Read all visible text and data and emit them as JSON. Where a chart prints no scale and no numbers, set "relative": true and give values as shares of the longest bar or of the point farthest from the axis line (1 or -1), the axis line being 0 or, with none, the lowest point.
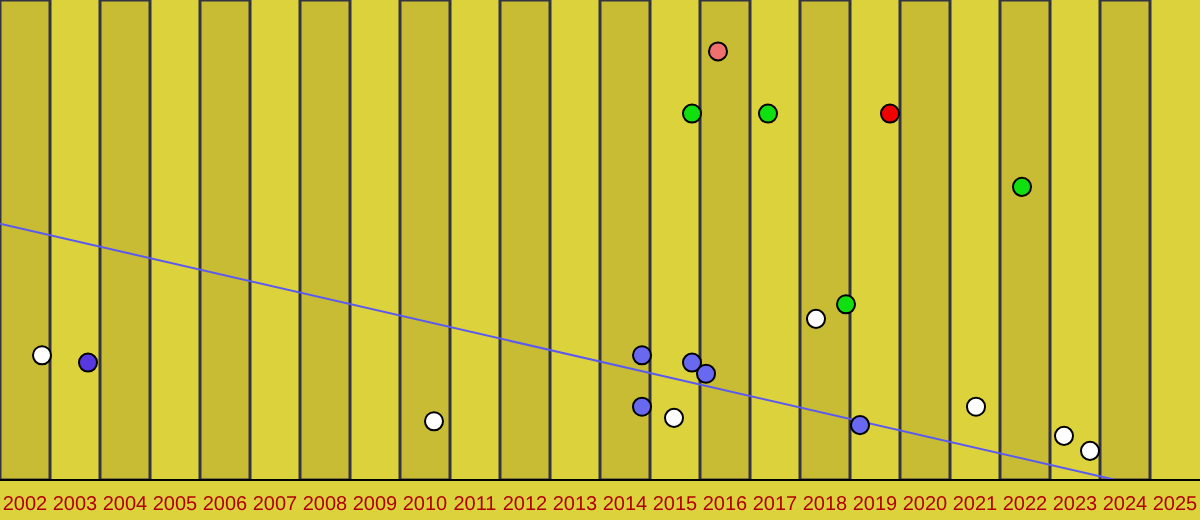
{
  "chart_data": {
    "type": "scatter",
    "relative": true,
    "marker": "circle",
    "tick_labels": "x",
    "xlim": [
      2001.5,
      2025.5
    ],
    "xticks": [
      2002,
      2003,
      2004,
      2005,
      2006,
      2007,
      2008,
      2009,
      2010,
      2011,
      2012,
      2013,
      2014,
      2015,
      2016,
      2017,
      2018,
      2019,
      2020,
      2021,
      2022,
      2023,
      2024,
      2025
    ],
    "series": [
      {
        "color": "#f07070",
        "x": [
          2015.86
        ],
        "values": [
          1
        ]
      },
      {
        "color": "#10e010",
        "x": [
          2015.34,
          2016.86,
          2021.94,
          2018.42
        ],
        "values": [
          0.855,
          0.855,
          0.684,
          0.41
        ]
      },
      {
        "color": "#f00000",
        "x": [
          2019.3
        ],
        "values": [
          0.855
        ]
      },
      {
        "color": "#ffffff",
        "x": [
          2002.34,
          2010.18,
          2014.98,
          2017.82,
          2021.02,
          2022.78,
          2023.3
        ],
        "values": [
          0.291,
          0.137,
          0.145,
          0.376,
          0.171,
          0.103,
          0.068
        ]
      },
      {
        "color": "#6868f0",
        "x": [
          2014.34,
          2015.34,
          2015.62,
          2014.34,
          2018.7
        ],
        "values": [
          0.291,
          0.274,
          0.248,
          0.171,
          0.128
        ]
      },
      {
        "color": "#5838e0",
        "x": [
          2003.26
        ],
        "values": [
          0.274
        ]
      },
      {
        "type": "line",
        "color": "#5a5af0",
        "marker": "none",
        "x": [
          2001.5,
          2023.82
        ],
        "values": [
          0.598,
          0
        ]
      }
    ],
    "bands": [
      {
        "axis": "x",
        "from": 2001.5,
        "to": 2002.5,
        "color": "#c8bc34"
      },
      {
        "axis": "x",
        "from": 2003.5,
        "to": 2004.5,
        "color": "#c8bc34"
      },
      {
        "axis": "x",
        "from": 2005.5,
        "to": 2006.5,
        "color": "#c8bc34"
      },
      {
        "axis": "x",
        "from": 2007.5,
        "to": 2008.5,
        "color": "#c8bc34"
      },
      {
        "axis": "x",
        "from": 2009.5,
        "to": 2010.5,
        "color": "#c8bc34"
      },
      {
        "axis": "x",
        "from": 2011.5,
        "to": 2012.5,
        "color": "#c8bc34"
      },
      {
        "axis": "x",
        "from": 2013.5,
        "to": 2014.5,
        "color": "#c8bc34"
      },
      {
        "axis": "x",
        "from": 2015.5,
        "to": 2016.5,
        "color": "#c8bc34"
      },
      {
        "axis": "x",
        "from": 2017.5,
        "to": 2018.5,
        "color": "#c8bc34"
      },
      {
        "axis": "x",
        "from": 2019.5,
        "to": 2020.5,
        "color": "#c8bc34"
      },
      {
        "axis": "x",
        "from": 2021.5,
        "to": 2022.5,
        "color": "#c8bc34"
      },
      {
        "axis": "x",
        "from": 2023.5,
        "to": 2024.5,
        "color": "#c8bc34"
      }
    ]
  }
}
